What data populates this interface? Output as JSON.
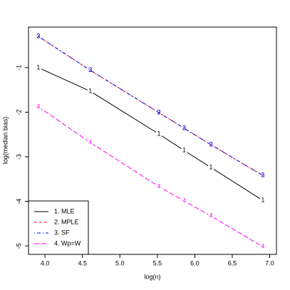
{
  "chart_data": {
    "type": "line",
    "xlabel": "log(n)",
    "ylabel": "log(median bias)",
    "x": [
      3.912,
      4.605,
      5.521,
      5.858,
      6.215,
      6.908
    ],
    "series": [
      {
        "name": "1. MLE",
        "marker": "1",
        "color": "#000000",
        "dash": "solid",
        "values": [
          -1.0,
          -1.53,
          -2.49,
          -2.86,
          -3.24,
          -3.98
        ]
      },
      {
        "name": "2. MPLE",
        "marker": "2",
        "color": "#ff0000",
        "dash": "dashed",
        "values": [
          -0.3,
          -1.06,
          -2.01,
          -2.36,
          -2.73,
          -3.42
        ]
      },
      {
        "name": "3. SF",
        "marker": "3",
        "color": "#0000ff",
        "dash": "dotdash",
        "values": [
          -0.3,
          -1.06,
          -2.01,
          -2.36,
          -2.73,
          -3.42
        ]
      },
      {
        "name": "4. Wp=W",
        "marker": "4",
        "color": "#ff00ff",
        "dash": "longdash",
        "values": [
          -1.88,
          -2.68,
          -3.67,
          -3.99,
          -4.33,
          -5.02
        ]
      }
    ],
    "xlim": [
      3.78,
      7.09
    ],
    "ylim": [
      -5.19,
      -0.09
    ],
    "xticks": [
      {
        "value": 4,
        "label": "4.0"
      },
      {
        "value": 4.5,
        "label": "4.5"
      },
      {
        "value": 5,
        "label": "5.0"
      },
      {
        "value": 5.5,
        "label": "5.5"
      },
      {
        "value": 6,
        "label": "6.0"
      },
      {
        "value": 6.5,
        "label": "6.5"
      },
      {
        "value": 7,
        "label": "7.0"
      }
    ],
    "yticks": [
      -1,
      -2,
      -3,
      -4,
      -5
    ],
    "legend": "bottom-left"
  }
}
